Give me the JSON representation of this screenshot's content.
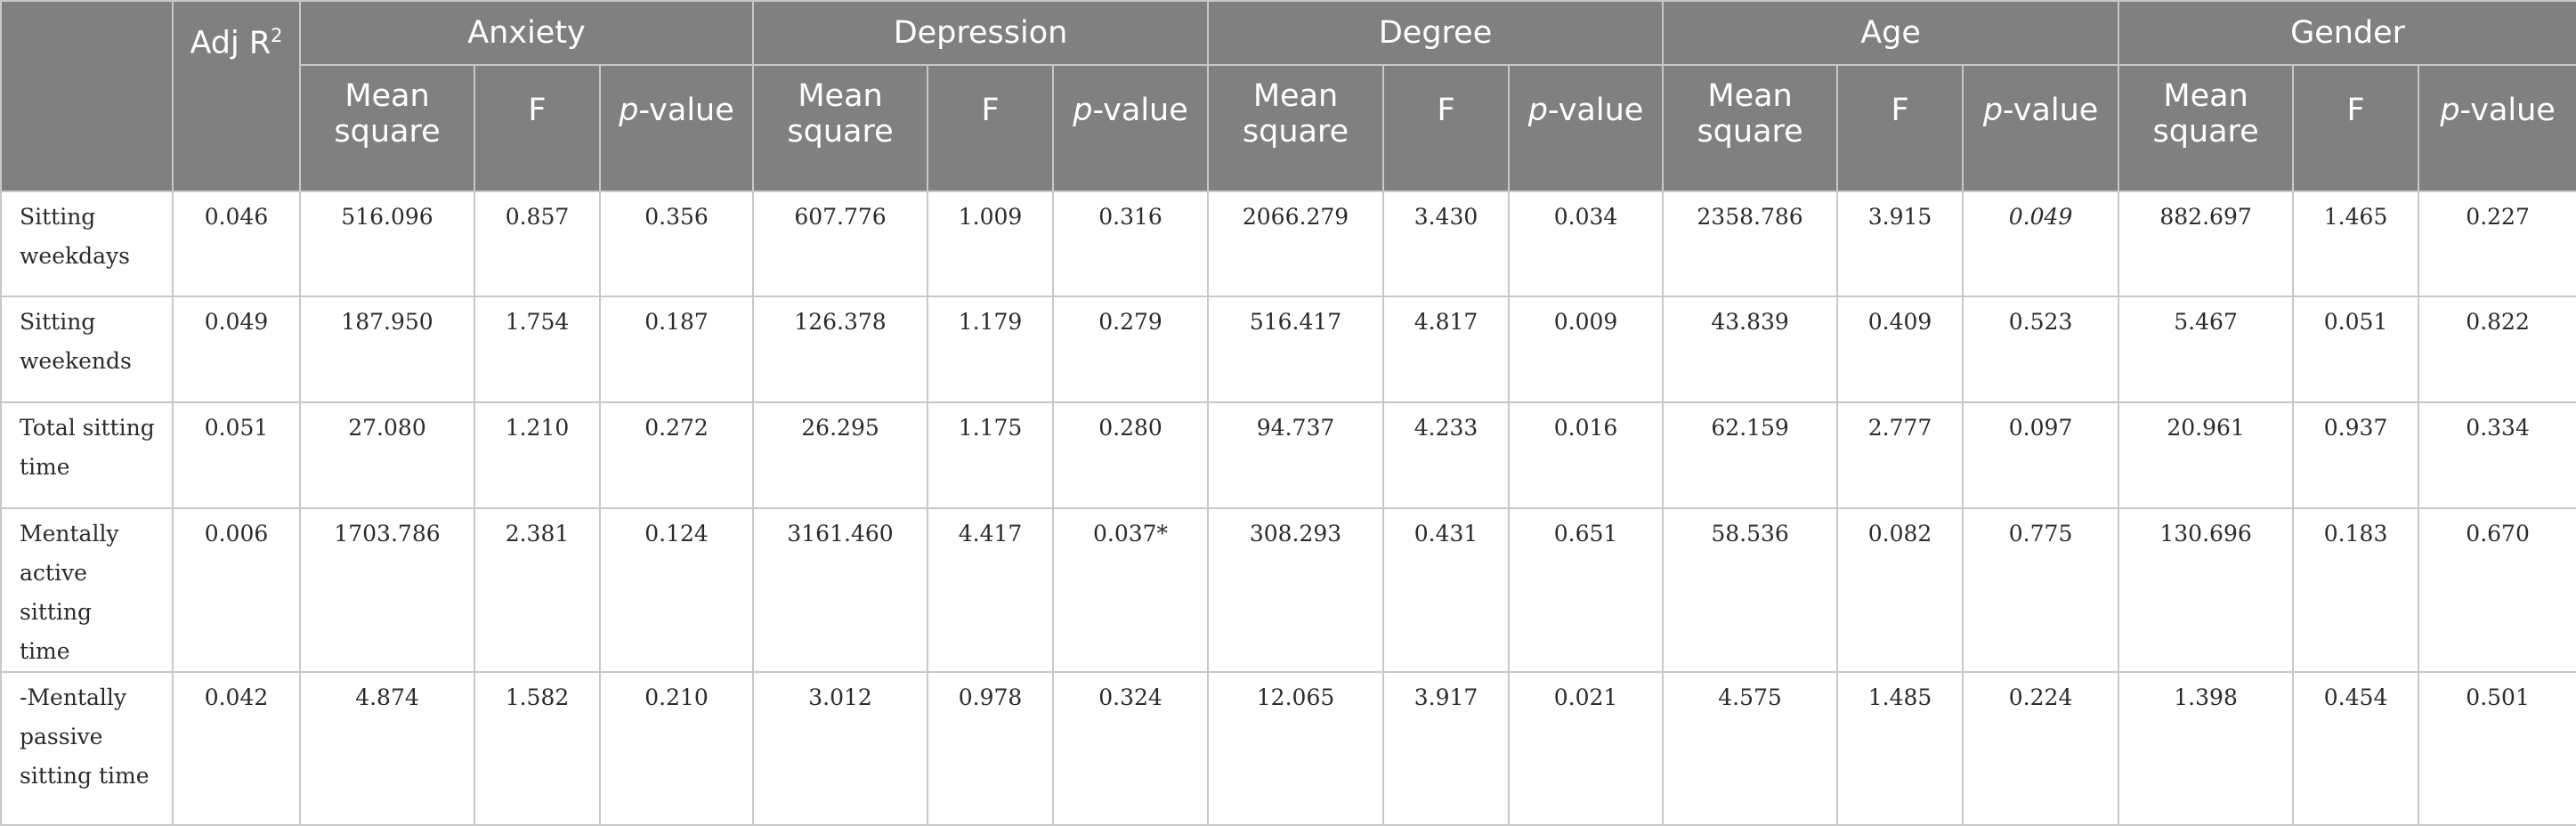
{
  "header": {
    "adj_label": "Adj R",
    "adj_sup": "2",
    "groups": [
      "Anxiety",
      "Depression",
      "Degree",
      "Age",
      "Gender"
    ],
    "mean_square_label_1": "Mean",
    "mean_square_label_2": "square",
    "f_label": "F",
    "p_label_italic": "p",
    "p_label_rest": "-value"
  },
  "rows": [
    {
      "label_lines": [
        "Sitting",
        "weekdays"
      ],
      "adj": "0.046",
      "values": [
        "516.096",
        "0.857",
        "0.356",
        "607.776",
        "1.009",
        "0.316",
        "2066.279",
        "3.430",
        "0.034",
        "2358.786",
        "3.915",
        "0.049",
        "882.697",
        "1.465",
        "0.227"
      ]
    },
    {
      "label_lines": [
        "Sitting",
        "weekends"
      ],
      "adj": "0.049",
      "values": [
        "187.950",
        "1.754",
        "0.187",
        "126.378",
        "1.179",
        "0.279",
        "516.417",
        "4.817",
        "0.009",
        "43.839",
        "0.409",
        "0.523",
        "5.467",
        "0.051",
        "0.822"
      ]
    },
    {
      "label_lines": [
        "Total sitting",
        "time"
      ],
      "adj": "0.051",
      "values": [
        "27.080",
        "1.210",
        "0.272",
        "26.295",
        "1.175",
        "0.280",
        "94.737",
        "4.233",
        "0.016",
        "62.159",
        "2.777",
        "0.097",
        "20.961",
        "0.937",
        "0.334"
      ]
    },
    {
      "label_lines": [
        "Mentally",
        "active sitting",
        "time"
      ],
      "adj": "0.006",
      "values": [
        "1703.786",
        "2.381",
        "0.124",
        "3161.460",
        "4.417",
        "0.037*",
        "308.293",
        "0.431",
        "0.651",
        "58.536",
        "0.082",
        "0.775",
        "130.696",
        "0.183",
        "0.670"
      ]
    },
    {
      "label_lines": [
        "-Mentally",
        "passive",
        "sitting time"
      ],
      "adj": "0.042",
      "values": [
        "4.874",
        "1.582",
        "0.210",
        "3.012",
        "0.978",
        "0.324",
        "12.065",
        "3.917",
        "0.021",
        "4.575",
        "1.485",
        "0.224",
        "1.398",
        "0.454",
        "0.501"
      ]
    }
  ]
}
